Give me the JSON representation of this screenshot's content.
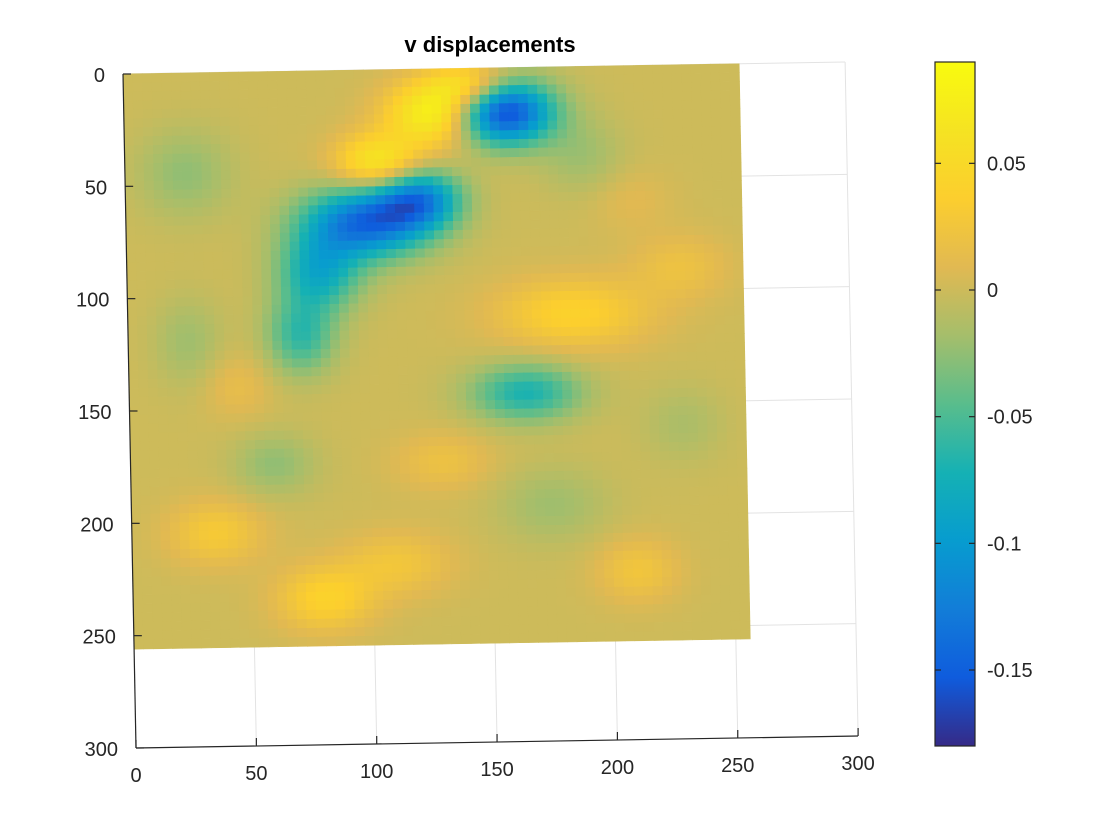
{
  "chart_data": {
    "type": "heatmap",
    "title": "v displacements",
    "xlabel": "",
    "ylabel": "",
    "grid": true,
    "x_axis": {
      "lim": [
        0,
        300
      ],
      "ticks": [
        0,
        50,
        100,
        150,
        200,
        250,
        300
      ],
      "tick_labels": [
        "0",
        "50",
        "100",
        "150",
        "200",
        "250",
        "300"
      ]
    },
    "y_axis": {
      "lim": [
        0,
        300
      ],
      "reversed": true,
      "ticks": [
        0,
        50,
        100,
        150,
        200,
        250,
        300
      ],
      "tick_labels": [
        "0",
        "50",
        "100",
        "150",
        "200",
        "250",
        "300"
      ]
    },
    "data_extent": {
      "x": [
        0,
        256
      ],
      "y": [
        0,
        256
      ]
    },
    "colormap": "parula",
    "colorbar": {
      "location": "right",
      "lim": [
        -0.18,
        0.09
      ],
      "ticks": [
        0.05,
        0,
        -0.05,
        -0.1,
        -0.15
      ],
      "tick_labels": [
        "0.05",
        "0",
        "-0.05",
        "-0.1",
        "-0.15"
      ]
    },
    "background_value": 0,
    "features": [
      {
        "x": 130,
        "y": 20,
        "sx": 14,
        "sy": 10,
        "value": 0.085
      },
      {
        "x": 105,
        "y": 42,
        "sx": 12,
        "sy": 9,
        "value": 0.07
      },
      {
        "x": 145,
        "y": 8,
        "sx": 12,
        "sy": 7,
        "value": 0.06
      },
      {
        "x": 158,
        "y": 20,
        "sx": 14,
        "sy": 10,
        "value": -0.17
      },
      {
        "x": 100,
        "y": 68,
        "sx": 18,
        "sy": 11,
        "value": -0.14
      },
      {
        "x": 122,
        "y": 58,
        "sx": 12,
        "sy": 9,
        "value": -0.11
      },
      {
        "x": 80,
        "y": 90,
        "sx": 12,
        "sy": 12,
        "value": -0.08
      },
      {
        "x": 72,
        "y": 118,
        "sx": 10,
        "sy": 12,
        "value": -0.06
      },
      {
        "x": 165,
        "y": 145,
        "sx": 16,
        "sy": 9,
        "value": -0.07
      },
      {
        "x": 185,
        "y": 110,
        "sx": 22,
        "sy": 11,
        "value": 0.04
      },
      {
        "x": 80,
        "y": 235,
        "sx": 14,
        "sy": 10,
        "value": 0.04
      },
      {
        "x": 35,
        "y": 205,
        "sx": 14,
        "sy": 10,
        "value": 0.03
      },
      {
        "x": 110,
        "y": 220,
        "sx": 16,
        "sy": 10,
        "value": 0.025
      },
      {
        "x": 130,
        "y": 175,
        "sx": 14,
        "sy": 9,
        "value": 0.02
      },
      {
        "x": 210,
        "y": 225,
        "sx": 12,
        "sy": 10,
        "value": 0.025
      },
      {
        "x": 45,
        "y": 140,
        "sx": 10,
        "sy": 10,
        "value": 0.015
      },
      {
        "x": 230,
        "y": 90,
        "sx": 14,
        "sy": 10,
        "value": 0.02
      },
      {
        "x": 25,
        "y": 45,
        "sx": 14,
        "sy": 14,
        "value": -0.025
      },
      {
        "x": 190,
        "y": 40,
        "sx": 12,
        "sy": 12,
        "value": -0.02
      },
      {
        "x": 60,
        "y": 175,
        "sx": 12,
        "sy": 10,
        "value": -0.025
      },
      {
        "x": 175,
        "y": 195,
        "sx": 16,
        "sy": 12,
        "value": -0.02
      },
      {
        "x": 25,
        "y": 120,
        "sx": 10,
        "sy": 14,
        "value": -0.02
      },
      {
        "x": 230,
        "y": 160,
        "sx": 12,
        "sy": 12,
        "value": -0.015
      },
      {
        "x": 210,
        "y": 60,
        "sx": 12,
        "sy": 10,
        "value": 0.01
      }
    ]
  }
}
